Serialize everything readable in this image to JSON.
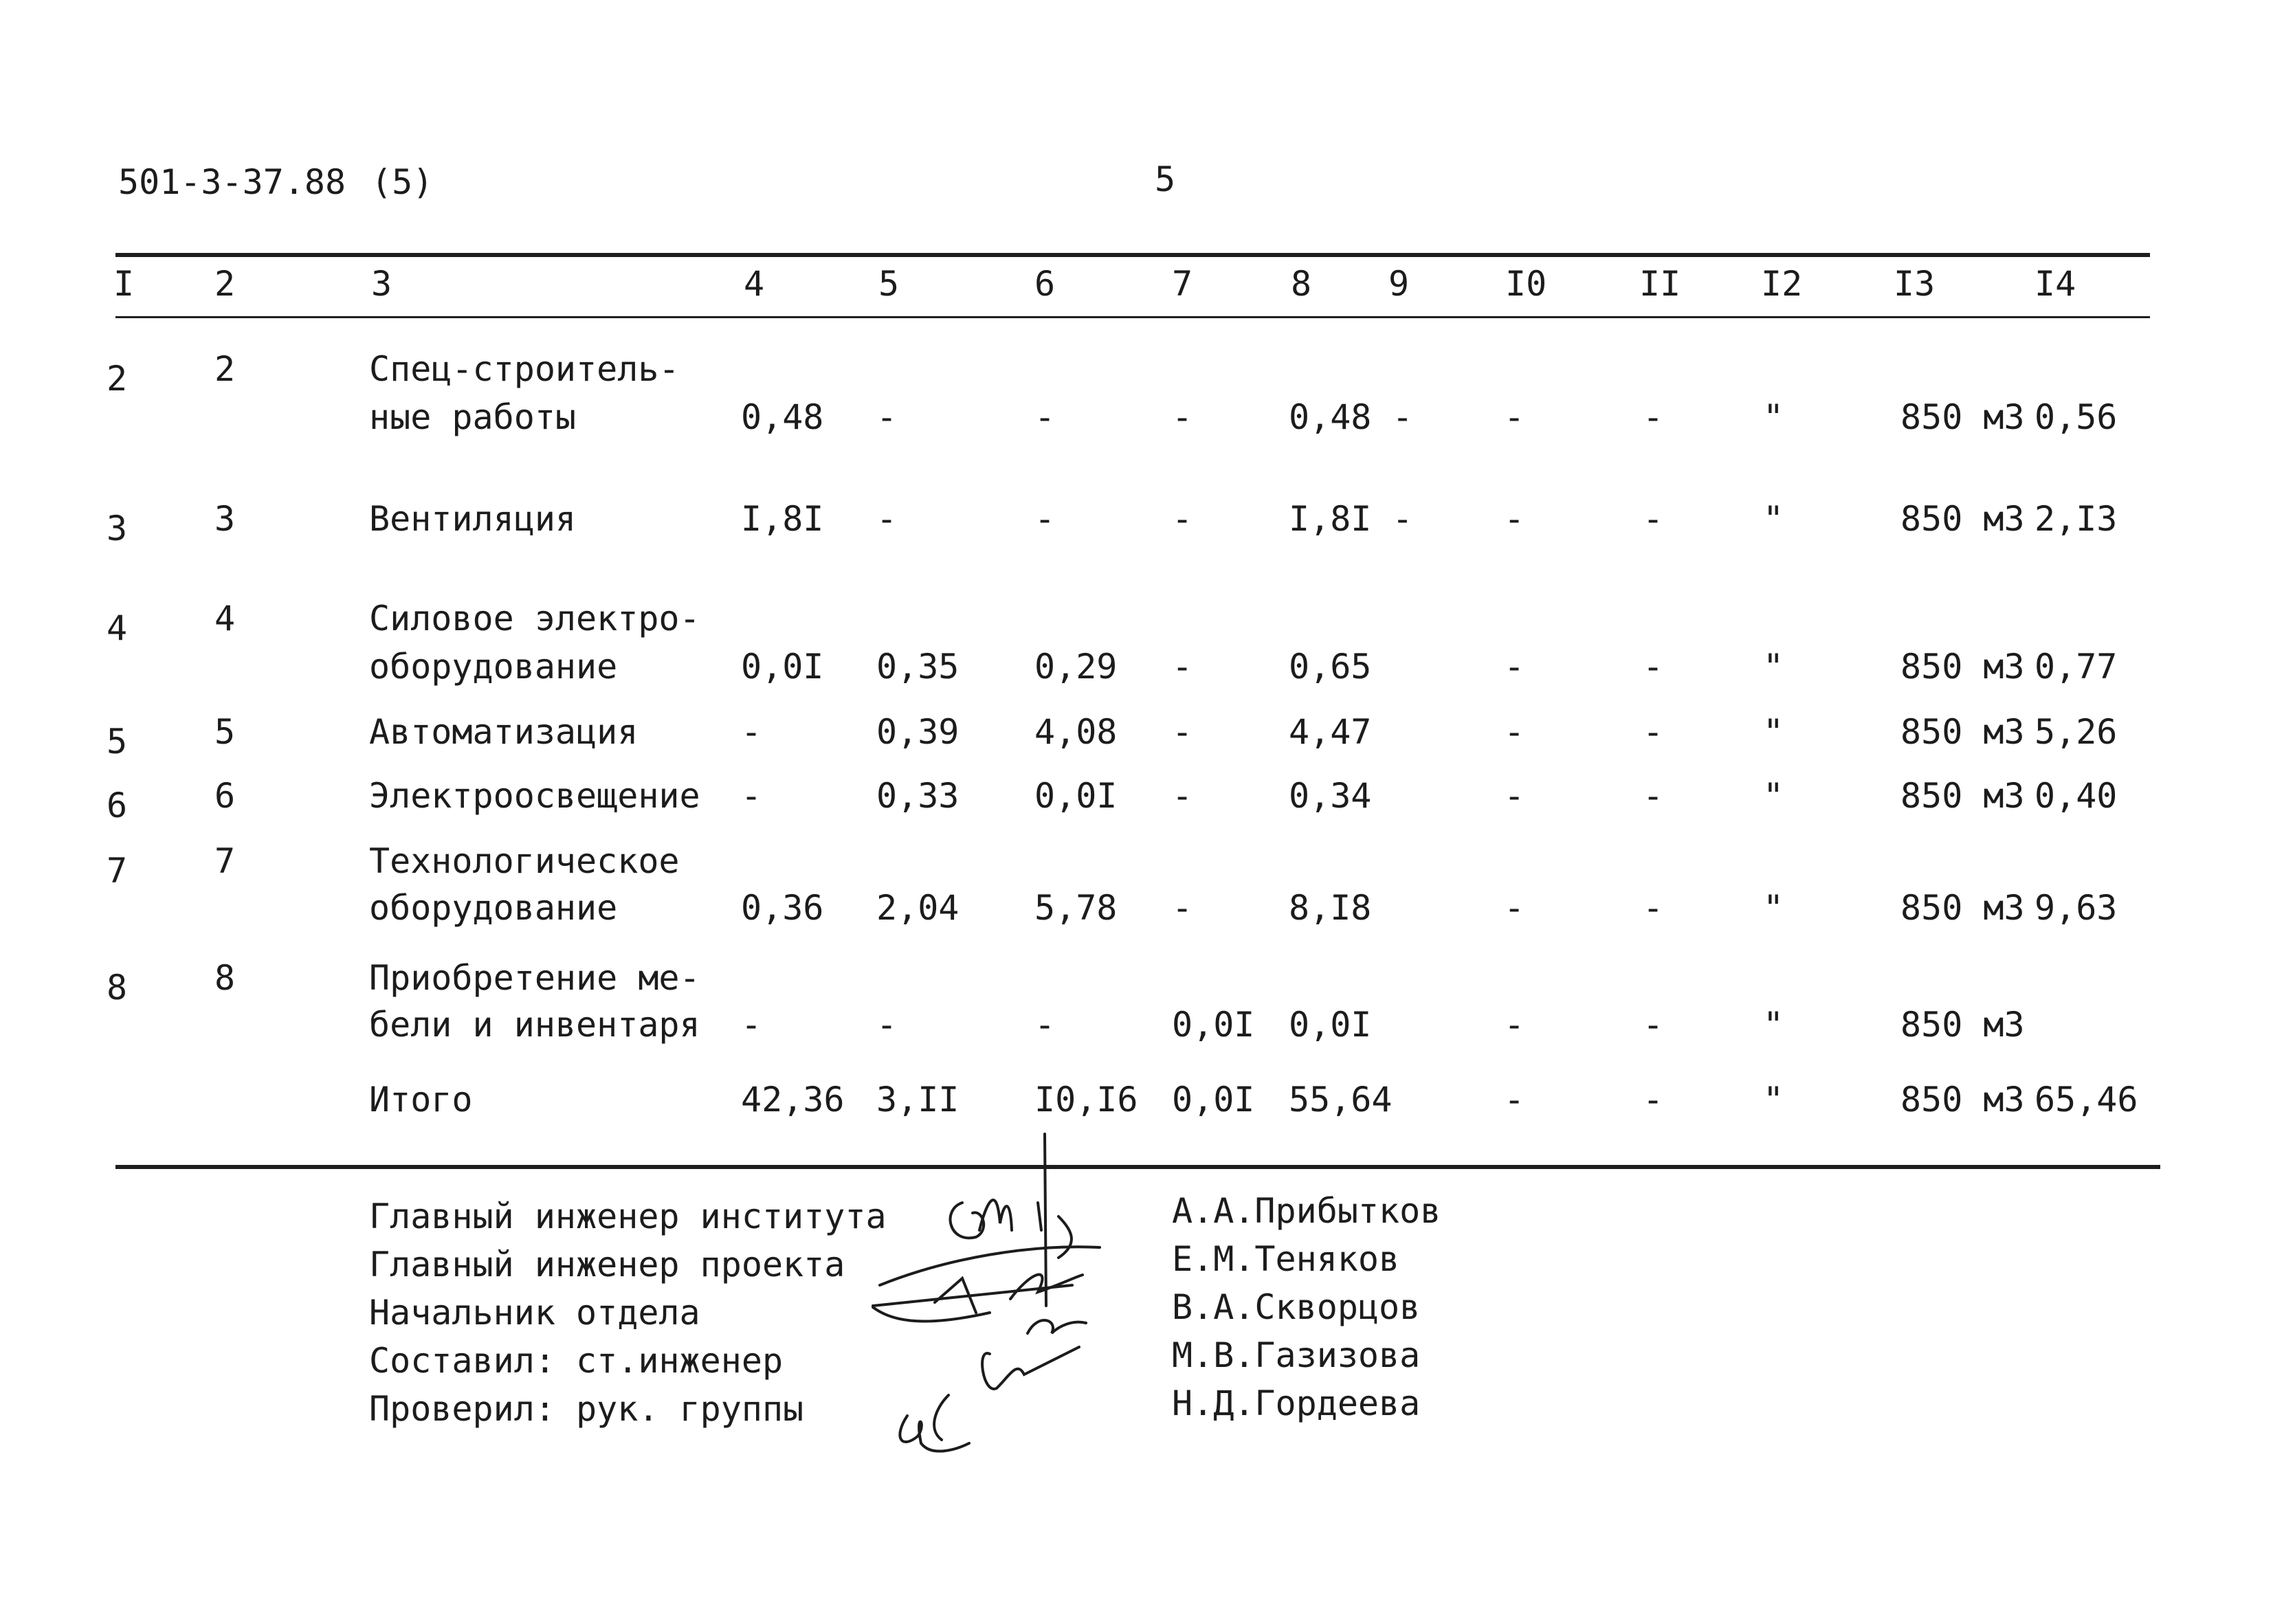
{
  "header": {
    "doc_code": "501-3-37.88",
    "doc_part": "(5)",
    "page_number": "5"
  },
  "columns": [
    "I",
    "2",
    "3",
    "4",
    "5",
    "6",
    "7",
    "8",
    "9",
    "I0",
    "II",
    "I2",
    "I3",
    "I4"
  ],
  "rows": [
    {
      "n1": "2",
      "n2": "2",
      "name1": "Спец-строитель-",
      "name2": "ные работы",
      "c4": "0,48",
      "c5": "-",
      "c6": "-",
      "c7": "-",
      "c8": "0,48 -",
      "c10": "-",
      "c11": "-",
      "c12": "\"",
      "c13": "850 м3",
      "c14": "0,56"
    },
    {
      "n1": "3",
      "n2": "3",
      "name1": "Вентиляция",
      "name2": "",
      "c4": "I,8I",
      "c5": "-",
      "c6": "-",
      "c7": "-",
      "c8": "I,8I -",
      "c10": "-",
      "c11": "-",
      "c12": "\"",
      "c13": "850 м3",
      "c14": "2,I3"
    },
    {
      "n1": "4",
      "n2": "4",
      "name1": "Силовое электро-",
      "name2": "оборудование",
      "c4": "0,0I",
      "c5": "0,35",
      "c6": "0,29",
      "c7": "-",
      "c8": "0,65",
      "c10": "-",
      "c11": "-",
      "c12": "\"",
      "c13": "850 м3",
      "c14": "0,77"
    },
    {
      "n1": "5",
      "n2": "5",
      "name1": "Автоматизация",
      "name2": "",
      "c4": "-",
      "c5": "0,39",
      "c6": "4,08",
      "c7": "-",
      "c8": "4,47",
      "c10": "-",
      "c11": "-",
      "c12": "\"",
      "c13": "850 м3",
      "c14": "5,26"
    },
    {
      "n1": "6",
      "n2": "6",
      "name1": "Электроосвещение",
      "name2": "",
      "c4": "-",
      "c5": "0,33",
      "c6": "0,0I",
      "c7": "-",
      "c8": "0,34",
      "c10": "-",
      "c11": "-",
      "c12": "\"",
      "c13": "850 м3",
      "c14": "0,40"
    },
    {
      "n1": "7",
      "n2": "7",
      "name1": "Технологическое",
      "name2": "оборудование",
      "c4": "0,36",
      "c5": "2,04",
      "c6": "5,78",
      "c7": "-",
      "c8": "8,I8",
      "c10": "-",
      "c11": "-",
      "c12": "\"",
      "c13": "850 м3",
      "c14": "9,63"
    },
    {
      "n1": "8",
      "n2": "8",
      "name1": "Приобретение ме-",
      "name2": "бели и инвентаря",
      "c4": "-",
      "c5": "-",
      "c6": "-",
      "c7": "0,0I",
      "c8": "0,0I",
      "c10": "-",
      "c11": "-",
      "c12": "\"",
      "c13": "850 м3",
      "c14": ""
    }
  ],
  "total": {
    "label": "Итого",
    "c4": "42,36",
    "c5": "3,II",
    "c6": "I0,I6",
    "c7": "0,0I",
    "c8": "55,64",
    "c10": "-",
    "c11": "-",
    "c12": "\"",
    "c13": "850 м3",
    "c14": "65,46"
  },
  "signatures": [
    {
      "role": "Главный инженер института",
      "name": "А.А.Прибытков"
    },
    {
      "role": "Главный инженер проекта",
      "name": "Е.М.Теняков"
    },
    {
      "role": "Начальник отдела",
      "name": "В.А.Скворцов"
    },
    {
      "role": "Составил: ст.инженер",
      "name": "М.В.Газизова"
    },
    {
      "role": "Проверил: рук. группы",
      "name": "Н.Д.Гордеева"
    }
  ],
  "colors": {
    "ink": "#1c1c1c",
    "paper": "#ffffff"
  }
}
